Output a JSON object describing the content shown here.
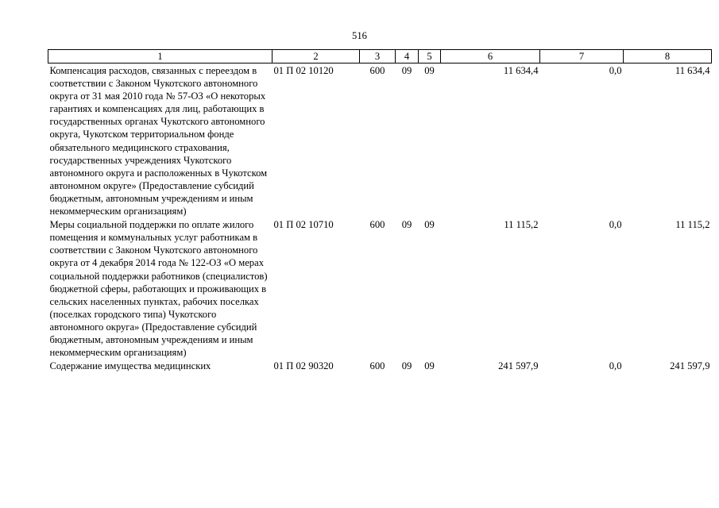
{
  "page_number": "516",
  "header": [
    "1",
    "2",
    "3",
    "4",
    "5",
    "6",
    "7",
    "8"
  ],
  "rows": [
    {
      "description": "Компенсация расходов, связанных с переездом в соответствии с Законом Чукотского автономного округа от 31 мая 2010 года № 57-ОЗ «О некоторых гарантиях и компенсациях для лиц, работающих в государственных органах Чукотского автономного округа, Чукотском территориальном фонде обязательного медицинского страхования, государственных учреждениях Чукотского автономного округа и расположенных в Чукотском автономном округе» (Предоставление субсидий бюджетным, автономным учреждениям и иным некоммерческим организациям)",
      "code": "01 П 02 10120",
      "c3": "600",
      "c4": "09",
      "c5": "09",
      "c6": "11 634,4",
      "c7": "0,0",
      "c8": "11 634,4"
    },
    {
      "description": "Меры социальной поддержки по оплате жилого помещения и коммунальных услуг работникам в соответствии с Законом Чукотского автономного округа от 4 декабря 2014 года № 122-ОЗ «О мерах социальной поддержки работников (специалистов) бюджетной сферы, работающих и проживающих в сельских населенных пунктах, рабочих поселках (поселках городского типа) Чукотского автономного округа» (Предоставление субсидий бюджетным, автономным учреждениям и иным некоммерческим организациям)",
      "code": "01 П 02 10710",
      "c3": "600",
      "c4": "09",
      "c5": "09",
      "c6": "11 115,2",
      "c7": "0,0",
      "c8": "11 115,2"
    },
    {
      "description": "Содержание имущества медицинских",
      "code": "01 П 02 90320",
      "c3": "600",
      "c4": "09",
      "c5": "09",
      "c6": "241 597,9",
      "c7": "0,0",
      "c8": "241 597,9"
    }
  ]
}
